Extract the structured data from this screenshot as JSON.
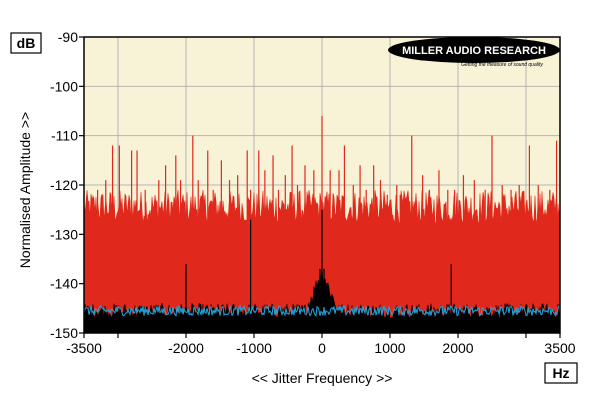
{
  "brand": {
    "title": "MILLER AUDIO RESEARCH",
    "tagline": "Getting the measure of sound quality"
  },
  "colors": {
    "plot_background": "#f8f3d6",
    "grid": "#b5b5b5",
    "red_trace": "#e0281c",
    "black_trace": "#000000",
    "blue_trace": "#1ea8e0",
    "frame": "#000000"
  },
  "chart_data": {
    "type": "area",
    "title": "",
    "xlabel": "<< Jitter Frequency >>",
    "ylabel": "Normalised Amplitude >>",
    "x_unit": "Hz",
    "y_unit": "dB",
    "xlim": [
      -3500,
      3500
    ],
    "ylim": [
      -150,
      -90
    ],
    "x_ticks": [
      -3500,
      -2000,
      -1000,
      0,
      1000,
      2000,
      3500
    ],
    "x_tick_labels": [
      "-3500",
      "-2000",
      "-1000",
      "0",
      "1000",
      "2000",
      "3500"
    ],
    "x_minor_ticks": [
      -3000,
      3000
    ],
    "y_ticks": [
      -150,
      -140,
      -130,
      -120,
      -110,
      -100,
      -90
    ],
    "y_tick_labels": [
      "-150",
      "-140",
      "-130",
      "-120",
      "-110",
      "-100",
      "-90"
    ],
    "x_gridlines": [
      -3000,
      -2000,
      -1000,
      0,
      1000,
      2000,
      3000
    ],
    "y_gridlines": [
      -140,
      -130,
      -120,
      -110,
      -100
    ],
    "grid": true,
    "legend": "none",
    "series": [
      {
        "color": "red",
        "noise_floor_db": -126,
        "noise_floor_range_db": [
          -128,
          -121
        ],
        "spurs": [
          {
            "x": -3300,
            "y": -121
          },
          {
            "x": -3180,
            "y": -119
          },
          {
            "x": -3080,
            "y": -112
          },
          {
            "x": -2980,
            "y": -112
          },
          {
            "x": -2800,
            "y": -113
          },
          {
            "x": -2720,
            "y": -113
          },
          {
            "x": -2600,
            "y": -121
          },
          {
            "x": -2400,
            "y": -119
          },
          {
            "x": -2300,
            "y": -116
          },
          {
            "x": -2150,
            "y": -114
          },
          {
            "x": -2080,
            "y": -119
          },
          {
            "x": -1900,
            "y": -110
          },
          {
            "x": -1820,
            "y": -119
          },
          {
            "x": -1680,
            "y": -113
          },
          {
            "x": -1600,
            "y": -121
          },
          {
            "x": -1480,
            "y": -115
          },
          {
            "x": -1360,
            "y": -119
          },
          {
            "x": -1240,
            "y": -118
          },
          {
            "x": -1100,
            "y": -113
          },
          {
            "x": -1050,
            "y": -121
          },
          {
            "x": -930,
            "y": -113
          },
          {
            "x": -840,
            "y": -117
          },
          {
            "x": -720,
            "y": -114
          },
          {
            "x": -640,
            "y": -121
          },
          {
            "x": -540,
            "y": -118
          },
          {
            "x": -440,
            "y": -112
          },
          {
            "x": -360,
            "y": -120
          },
          {
            "x": -250,
            "y": -116
          },
          {
            "x": -120,
            "y": -117
          },
          {
            "x": 0,
            "y": -106
          },
          {
            "x": 120,
            "y": -117
          },
          {
            "x": 250,
            "y": -117
          },
          {
            "x": 330,
            "y": -112
          },
          {
            "x": 460,
            "y": -120
          },
          {
            "x": 560,
            "y": -116
          },
          {
            "x": 650,
            "y": -121
          },
          {
            "x": 760,
            "y": -116
          },
          {
            "x": 860,
            "y": -119
          },
          {
            "x": 960,
            "y": -122
          },
          {
            "x": 1100,
            "y": -120
          },
          {
            "x": 1150,
            "y": -122
          },
          {
            "x": 1320,
            "y": -110
          },
          {
            "x": 1480,
            "y": -118
          },
          {
            "x": 1580,
            "y": -121
          },
          {
            "x": 1720,
            "y": -117
          },
          {
            "x": 1850,
            "y": -121
          },
          {
            "x": 1950,
            "y": -121
          },
          {
            "x": 2080,
            "y": -118
          },
          {
            "x": 2240,
            "y": -119
          },
          {
            "x": 2400,
            "y": -121
          },
          {
            "x": 2500,
            "y": -110
          },
          {
            "x": 2650,
            "y": -120
          },
          {
            "x": 2780,
            "y": -121
          },
          {
            "x": 2900,
            "y": -120
          },
          {
            "x": 3050,
            "y": -112
          },
          {
            "x": 3180,
            "y": -120
          },
          {
            "x": 3350,
            "y": -121
          },
          {
            "x": 3450,
            "y": -111
          }
        ]
      },
      {
        "color": "black",
        "noise_floor_db": -146,
        "noise_floor_range_db": [
          -147,
          -144
        ],
        "spurs": [
          {
            "x": -3400,
            "y": -145
          },
          {
            "x": -2650,
            "y": -145
          },
          {
            "x": -2000,
            "y": -136
          },
          {
            "x": -1050,
            "y": -127
          },
          {
            "x": -150,
            "y": -143
          },
          {
            "x": -80,
            "y": -140
          },
          {
            "x": -30,
            "y": -137
          },
          {
            "x": 0,
            "y": -125
          },
          {
            "x": 30,
            "y": -137
          },
          {
            "x": 80,
            "y": -140
          },
          {
            "x": 150,
            "y": -143
          },
          {
            "x": 1900,
            "y": -136
          },
          {
            "x": 3000,
            "y": -145
          }
        ]
      },
      {
        "color": "blue",
        "noise_floor_db": -145.5,
        "noise_floor_range_db": [
          -146.5,
          -144.5
        ],
        "spurs": []
      }
    ]
  }
}
